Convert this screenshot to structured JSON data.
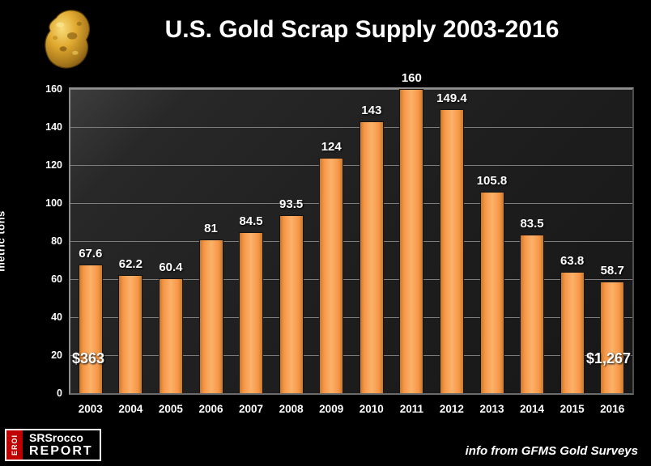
{
  "header": {
    "title": "U.S. Gold Scrap Supply 2003-2016"
  },
  "chart_data": {
    "type": "bar",
    "title": "U.S. Gold Scrap Supply 2003-2016",
    "categories": [
      "2003",
      "2004",
      "2005",
      "2006",
      "2007",
      "2008",
      "2009",
      "2010",
      "2011",
      "2012",
      "2013",
      "2014",
      "2015",
      "2016"
    ],
    "values": [
      67.6,
      62.2,
      60.4,
      81,
      84.5,
      93.5,
      124,
      143,
      160,
      149.4,
      105.8,
      83.5,
      63.8,
      58.7
    ],
    "labels": [
      "67.6",
      "62.2",
      "60.4",
      "81",
      "84.5",
      "93.5",
      "124",
      "143",
      "160",
      "149.4",
      "105.8",
      "83.5",
      "63.8",
      "58.7"
    ],
    "xlabel": "",
    "ylabel": "metric tons",
    "ylim": [
      0,
      160
    ],
    "yticks": [
      0,
      20,
      40,
      60,
      80,
      100,
      120,
      140,
      160
    ],
    "grid": true,
    "legend": "none",
    "bar_color": "#F79646",
    "background_color": "#000000",
    "annotations": [
      {
        "text": "$363",
        "position": "bottom-left"
      },
      {
        "text": "$1,267",
        "position": "bottom-right"
      }
    ]
  },
  "footer": {
    "logo": {
      "eroi": "EROI",
      "line1": "SRSrocco",
      "line2": "REPORT"
    },
    "source": "info from GFMS Gold Surveys"
  }
}
